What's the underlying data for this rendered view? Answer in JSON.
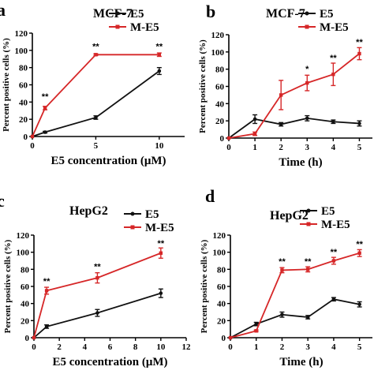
{
  "colors": {
    "E5": "#111111",
    "M-E5": "#d62728"
  },
  "chart_data": [
    {
      "type": "line",
      "panel_letter": "a",
      "title": "MCF-7",
      "xlabel": "E5 concentration (μM)",
      "ylabel": "Percent positive cells (%)",
      "xlim": [
        0,
        12
      ],
      "ylim": [
        0,
        120
      ],
      "xticks": [
        0,
        5,
        10
      ],
      "yticks": [
        0,
        20,
        40,
        60,
        80,
        100,
        120
      ],
      "legend": {
        "position": "top-right",
        "entries": [
          "E5",
          "M-E5"
        ]
      },
      "series": [
        {
          "name": "E5",
          "x": [
            0,
            1,
            5,
            10
          ],
          "y": [
            0,
            5,
            22,
            76
          ],
          "err": [
            0,
            1,
            2,
            4
          ]
        },
        {
          "name": "M-E5",
          "x": [
            0,
            1,
            5,
            10
          ],
          "y": [
            0,
            33,
            95,
            95
          ],
          "err": [
            0,
            2,
            1,
            2
          ]
        }
      ],
      "annotations": [
        {
          "text": "**",
          "x": 1,
          "y": 43
        },
        {
          "text": "**",
          "x": 5,
          "y": 101
        },
        {
          "text": "**",
          "x": 10,
          "y": 101
        }
      ]
    },
    {
      "type": "line",
      "panel_letter": "b",
      "title": "MCF-7",
      "xlabel": "Time (h)",
      "ylabel": "Percent positive cells (%)",
      "xlim": [
        0,
        5.5
      ],
      "ylim": [
        0,
        120
      ],
      "xticks": [
        0,
        1,
        2,
        3,
        4,
        5
      ],
      "yticks": [
        0,
        20,
        40,
        60,
        80,
        100,
        120
      ],
      "legend": {
        "position": "top-right",
        "entries": [
          "E5",
          "M-E5"
        ]
      },
      "series": [
        {
          "name": "E5",
          "x": [
            0,
            1,
            2,
            3,
            4,
            5
          ],
          "y": [
            0,
            22,
            16,
            23,
            19,
            17
          ],
          "err": [
            0,
            5,
            2,
            3,
            2,
            3
          ]
        },
        {
          "name": "M-E5",
          "x": [
            0,
            1,
            2,
            3,
            4,
            5
          ],
          "y": [
            0,
            5,
            50,
            64,
            74,
            98
          ],
          "err": [
            0,
            2,
            17,
            9,
            13,
            7
          ]
        }
      ],
      "annotations": [
        {
          "text": "*",
          "x": 3,
          "y": 77
        },
        {
          "text": "**",
          "x": 4,
          "y": 90
        },
        {
          "text": "**",
          "x": 5,
          "y": 108
        }
      ]
    },
    {
      "type": "line",
      "panel_letter": "c",
      "title": "HepG2",
      "xlabel": "E5 concentration (μM)",
      "ylabel": "Percent positive cells (%)",
      "xlim": [
        0,
        12
      ],
      "ylim": [
        0,
        120
      ],
      "xticks": [
        0,
        2,
        4,
        6,
        8,
        10,
        12
      ],
      "yticks": [
        0,
        20,
        40,
        60,
        80,
        100,
        120
      ],
      "legend": {
        "position": "top-right",
        "entries": [
          "E5",
          "M-E5"
        ]
      },
      "series": [
        {
          "name": "E5",
          "x": [
            0,
            1,
            5,
            10
          ],
          "y": [
            0,
            13,
            29,
            52
          ],
          "err": [
            0,
            2,
            4,
            5
          ]
        },
        {
          "name": "M-E5",
          "x": [
            0,
            1,
            5,
            10
          ],
          "y": [
            0,
            55,
            70,
            99
          ],
          "err": [
            0,
            4,
            6,
            6
          ]
        }
      ],
      "annotations": [
        {
          "text": "**",
          "x": 1,
          "y": 63
        },
        {
          "text": "**",
          "x": 5,
          "y": 80
        },
        {
          "text": "**",
          "x": 10,
          "y": 107
        }
      ]
    },
    {
      "type": "line",
      "panel_letter": "d",
      "title": "HepG2",
      "xlabel": "Time (h)",
      "ylabel": "Percent positive cells (%)",
      "xlim": [
        0,
        5.5
      ],
      "ylim": [
        0,
        120
      ],
      "xticks": [
        0,
        1,
        2,
        3,
        4,
        5
      ],
      "yticks": [
        0,
        20,
        40,
        60,
        80,
        100,
        120
      ],
      "legend": {
        "position": "top-right",
        "entries": [
          "E5",
          "M-E5"
        ]
      },
      "series": [
        {
          "name": "E5",
          "x": [
            0,
            1,
            2,
            3,
            4,
            5
          ],
          "y": [
            0,
            16,
            27,
            24,
            45,
            39
          ],
          "err": [
            0,
            2,
            3,
            2,
            2,
            3
          ]
        },
        {
          "name": "M-E5",
          "x": [
            0,
            1,
            2,
            3,
            4,
            5
          ],
          "y": [
            0,
            8,
            79,
            80,
            90,
            99
          ],
          "err": [
            0,
            1,
            3,
            3,
            4,
            4
          ]
        }
      ],
      "annotations": [
        {
          "text": "**",
          "x": 2,
          "y": 86
        },
        {
          "text": "**",
          "x": 3,
          "y": 86
        },
        {
          "text": "**",
          "x": 4,
          "y": 97
        },
        {
          "text": "**",
          "x": 5,
          "y": 106
        }
      ]
    }
  ]
}
